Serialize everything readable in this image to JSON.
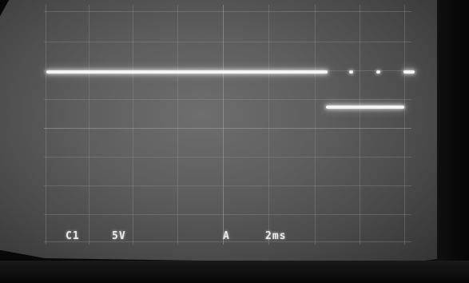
{
  "readouts": {
    "channel": "C1",
    "volts_per_div": "5V",
    "trigger": "A",
    "time_per_div": "2ms"
  },
  "colors": {
    "trace": "#f4f4f4",
    "screen": "#5e5e5e",
    "bezel": "#080808"
  }
}
